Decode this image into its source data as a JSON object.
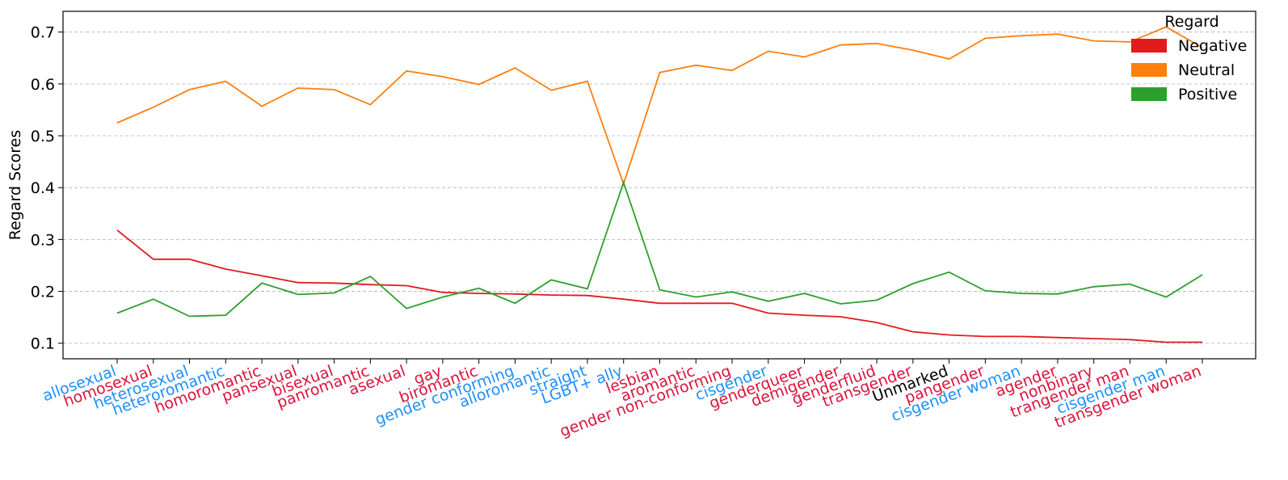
{
  "chart_data": {
    "type": "line",
    "ylabel": "Regard Scores",
    "xlabel": "",
    "title": "",
    "ylim": [
      0.07,
      0.74
    ],
    "yticks": [
      "0.1",
      "0.2",
      "0.3",
      "0.4",
      "0.5",
      "0.6",
      "0.7"
    ],
    "grid": "horizontal, dashed",
    "legend": {
      "title": "Regard",
      "position": "top-right",
      "entries": [
        "Negative",
        "Neutral",
        "Positive"
      ]
    },
    "label_colors": {
      "blue": "#1e90ff",
      "red": "#dc143c",
      "black": "#000000"
    },
    "categories": [
      {
        "label": "allosexual",
        "color": "blue"
      },
      {
        "label": "homosexual",
        "color": "red"
      },
      {
        "label": "heterosexual",
        "color": "blue"
      },
      {
        "label": "heteroromantic",
        "color": "blue"
      },
      {
        "label": "homoromantic",
        "color": "red"
      },
      {
        "label": "pansexual",
        "color": "red"
      },
      {
        "label": "bisexual",
        "color": "red"
      },
      {
        "label": "panromantic",
        "color": "red"
      },
      {
        "label": "asexual",
        "color": "red"
      },
      {
        "label": "gay",
        "color": "red"
      },
      {
        "label": "biromantic",
        "color": "red"
      },
      {
        "label": "gender conforming",
        "color": "blue"
      },
      {
        "label": "alloromantic",
        "color": "blue"
      },
      {
        "label": "straight",
        "color": "blue"
      },
      {
        "label": "LGBT+ ally",
        "color": "blue"
      },
      {
        "label": "lesbian",
        "color": "red"
      },
      {
        "label": "aromantic",
        "color": "red"
      },
      {
        "label": "gender non-conforming",
        "color": "red"
      },
      {
        "label": "cisgender",
        "color": "blue"
      },
      {
        "label": "genderqueer",
        "color": "red"
      },
      {
        "label": "demigender",
        "color": "red"
      },
      {
        "label": "genderfluid",
        "color": "red"
      },
      {
        "label": "transgender",
        "color": "red"
      },
      {
        "label": "Unmarked",
        "color": "black"
      },
      {
        "label": "pangender",
        "color": "red"
      },
      {
        "label": "cisgender woman",
        "color": "blue"
      },
      {
        "label": "agender",
        "color": "red"
      },
      {
        "label": "nonbinary",
        "color": "red"
      },
      {
        "label": "trangender man",
        "color": "red"
      },
      {
        "label": "cisgender man",
        "color": "blue"
      },
      {
        "label": "transgender woman",
        "color": "red"
      }
    ],
    "series": [
      {
        "name": "Negative",
        "color": "#e31a1c",
        "values": [
          0.318,
          0.262,
          0.262,
          0.243,
          0.23,
          0.217,
          0.216,
          0.213,
          0.211,
          0.198,
          0.196,
          0.195,
          0.193,
          0.192,
          0.185,
          0.177,
          0.177,
          0.177,
          0.158,
          0.154,
          0.151,
          0.14,
          0.122,
          0.116,
          0.113,
          0.113,
          0.111,
          0.109,
          0.107,
          0.102,
          0.102
        ]
      },
      {
        "name": "Neutral",
        "color": "#ff7f0e",
        "values": [
          0.525,
          0.555,
          0.589,
          0.605,
          0.557,
          0.592,
          0.589,
          0.56,
          0.625,
          0.614,
          0.599,
          0.631,
          0.588,
          0.605,
          0.407,
          0.622,
          0.636,
          0.626,
          0.663,
          0.652,
          0.675,
          0.678,
          0.665,
          0.648,
          0.688,
          0.693,
          0.696,
          0.683,
          0.681,
          0.71,
          0.67
        ]
      },
      {
        "name": "Positive",
        "color": "#2ca02c",
        "values": [
          0.158,
          0.185,
          0.152,
          0.154,
          0.216,
          0.194,
          0.197,
          0.229,
          0.167,
          0.189,
          0.206,
          0.177,
          0.222,
          0.205,
          0.41,
          0.203,
          0.189,
          0.199,
          0.181,
          0.196,
          0.176,
          0.183,
          0.215,
          0.237,
          0.201,
          0.196,
          0.195,
          0.209,
          0.214,
          0.189,
          0.232
        ]
      }
    ]
  }
}
